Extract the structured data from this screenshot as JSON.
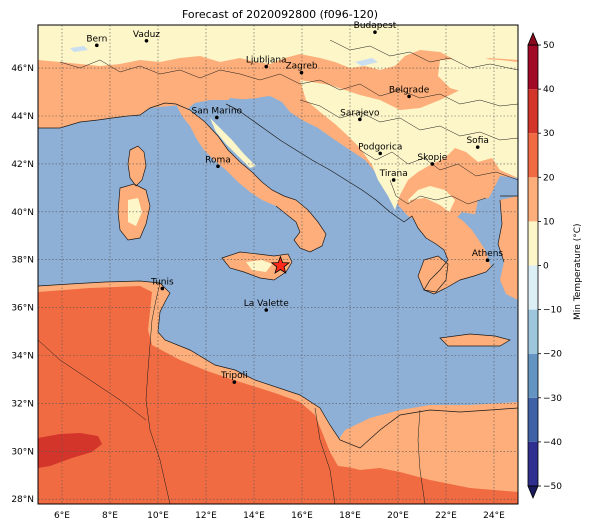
{
  "title": "Forecast of 2020092800 (f096-120)",
  "map": {
    "lon_range": [
      5,
      25
    ],
    "lat_range": [
      27.8,
      47.8
    ],
    "lon_ticks": [
      {
        "value": 6,
        "label": "6°E"
      },
      {
        "value": 8,
        "label": "8°E"
      },
      {
        "value": 10,
        "label": "10°E"
      },
      {
        "value": 12,
        "label": "12°E"
      },
      {
        "value": 14,
        "label": "14°E"
      },
      {
        "value": 16,
        "label": "16°E"
      },
      {
        "value": 18,
        "label": "18°E"
      },
      {
        "value": 20,
        "label": "20°E"
      },
      {
        "value": 22,
        "label": "22°E"
      },
      {
        "value": 24,
        "label": "24°E"
      }
    ],
    "lat_ticks": [
      {
        "value": 28,
        "label": "28°N"
      },
      {
        "value": 30,
        "label": "30°N"
      },
      {
        "value": 32,
        "label": "32°N"
      },
      {
        "value": 34,
        "label": "34°N"
      },
      {
        "value": 36,
        "label": "36°N"
      },
      {
        "value": 38,
        "label": "38°N"
      },
      {
        "value": 40,
        "label": "40°N"
      },
      {
        "value": 42,
        "label": "42°N"
      },
      {
        "value": 44,
        "label": "44°N"
      },
      {
        "value": 46,
        "label": "46°N"
      }
    ],
    "grid": true,
    "cities": [
      {
        "name": "Bern",
        "lon": 7.45,
        "lat": 46.95
      },
      {
        "name": "Vaduz",
        "lon": 9.52,
        "lat": 47.14
      },
      {
        "name": "Budapest",
        "lon": 19.04,
        "lat": 47.5
      },
      {
        "name": "Ljubljana",
        "lon": 14.51,
        "lat": 46.06
      },
      {
        "name": "Zagreb",
        "lon": 15.98,
        "lat": 45.81
      },
      {
        "name": "Belgrade",
        "lon": 20.46,
        "lat": 44.82
      },
      {
        "name": "San Marino",
        "lon": 12.45,
        "lat": 43.94
      },
      {
        "name": "Sarajevo",
        "lon": 18.41,
        "lat": 43.86
      },
      {
        "name": "Sofia",
        "lon": 23.32,
        "lat": 42.7
      },
      {
        "name": "Podgorica",
        "lon": 19.26,
        "lat": 42.44
      },
      {
        "name": "Skopje",
        "lon": 21.43,
        "lat": 42.0
      },
      {
        "name": "Roma",
        "lon": 12.5,
        "lat": 41.9
      },
      {
        "name": "Tirana",
        "lon": 19.82,
        "lat": 41.33
      },
      {
        "name": "Athens",
        "lon": 23.73,
        "lat": 37.98
      },
      {
        "name": "Tunis",
        "lon": 10.18,
        "lat": 36.8
      },
      {
        "name": "La Valette",
        "lon": 14.51,
        "lat": 35.9
      },
      {
        "name": "Tripoli",
        "lon": 13.18,
        "lat": 32.89
      }
    ],
    "marker": {
      "lon": 15.1,
      "lat": 37.75,
      "color": "#ff2a1a"
    }
  },
  "colorbar": {
    "label": "Min Temperature (°C)",
    "min": -50,
    "max": 50,
    "ticks": [
      -50,
      -40,
      -30,
      -20,
      -10,
      0,
      10,
      20,
      30,
      40,
      50
    ],
    "tick_labels": [
      "−50",
      "−40",
      "−30",
      "−20",
      "−10",
      "0",
      "10",
      "20",
      "30",
      "40",
      "50"
    ],
    "colors": [
      "#313695",
      "#4575b4",
      "#74add1",
      "#abd9e9",
      "#e0f3f8",
      "#ffffbf",
      "#fee090",
      "#fdae61",
      "#f46d43",
      "#d73027",
      "#a50026"
    ],
    "bands": [
      {
        "from": -50,
        "to": -40,
        "color": "#2e2f8f"
      },
      {
        "from": -40,
        "to": -30,
        "color": "#3f61a5"
      },
      {
        "from": -30,
        "to": -20,
        "color": "#6494c2"
      },
      {
        "from": -20,
        "to": -10,
        "color": "#9dc6dd"
      },
      {
        "from": -10,
        "to": 0,
        "color": "#dbeff5"
      },
      {
        "from": 0,
        "to": 10,
        "color": "#fdf6c8"
      },
      {
        "from": 10,
        "to": 20,
        "color": "#fdae7a"
      },
      {
        "from": 20,
        "to": 30,
        "color": "#f06b42"
      },
      {
        "from": 30,
        "to": 40,
        "color": "#d3352b"
      },
      {
        "from": 40,
        "to": 50,
        "color": "#a10a26"
      }
    ]
  },
  "fill_colors": {
    "sea": "#8fb0d6",
    "cool_land": "#fdf6c8",
    "warm": "#fdae7a",
    "hot": "#f06b42",
    "very_hot": "#d3352b",
    "water_body": "#c9def0"
  }
}
